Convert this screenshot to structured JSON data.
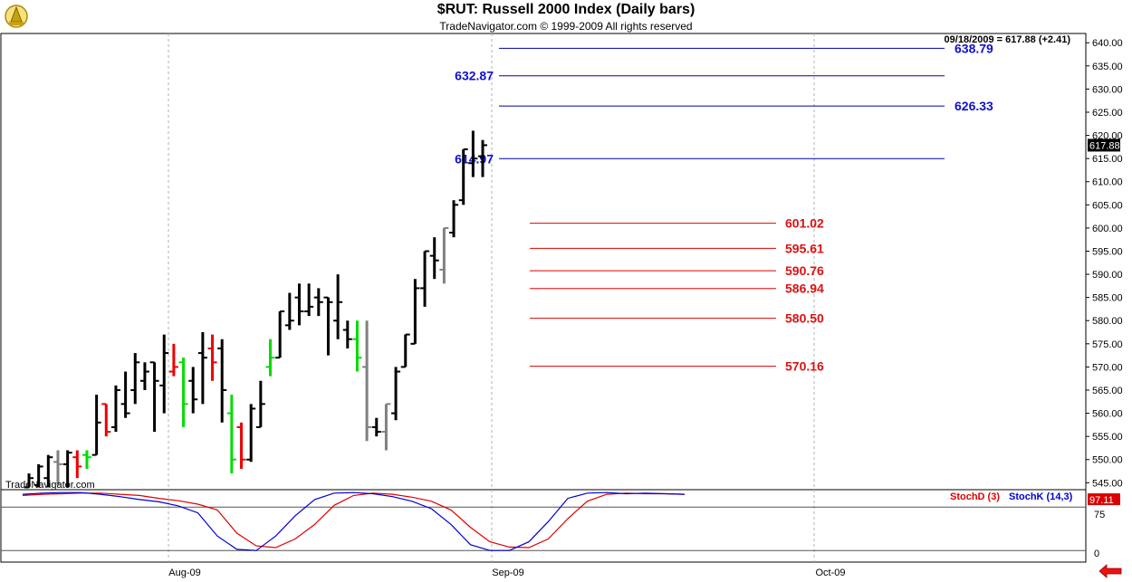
{
  "header": {
    "title": "$RUT:  Russell 2000 Index  (Daily bars)",
    "subtitle": "TradeNavigator.com © 1999-2009 All rights reserved",
    "last_quote": "09/18/2009 = 617.88 (+2.41)",
    "watermark": "TradeNavigator.com"
  },
  "colors": {
    "up_bar": "#000000",
    "down_bar": "#000000",
    "green_bar": "#00dd00",
    "red_bar": "#ee0000",
    "gray_bar": "#808080",
    "resistance": "#0000aa",
    "support": "#dd0000",
    "stochD": "#dd0000",
    "stochK": "#0000cc"
  },
  "chart_data": [
    {
      "type": "ohlc",
      "title": "$RUT:  Russell 2000 Index  (Daily bars)",
      "last_value_label": "617.88",
      "y_ticks": [
        545.0,
        550.0,
        555.0,
        560.0,
        565.0,
        570.0,
        575.0,
        580.0,
        585.0,
        590.0,
        595.0,
        600.0,
        605.0,
        610.0,
        615.0,
        620.0,
        625.0,
        630.0,
        635.0,
        640.0
      ],
      "ylim": [
        543.5,
        642
      ],
      "x_ticks": [
        "Aug-09",
        "Sep-09",
        "Oct-09"
      ],
      "bars": [
        {
          "o": 544.0,
          "h": 547.0,
          "l": 544.0,
          "c": 546.0,
          "color": "black"
        },
        {
          "o": 544.5,
          "h": 549.0,
          "l": 544.0,
          "c": 548.5,
          "color": "black"
        },
        {
          "o": 546.0,
          "h": 551.0,
          "l": 544.0,
          "c": 550.5,
          "color": "black"
        },
        {
          "o": 549.5,
          "h": 552.0,
          "l": 544.5,
          "c": 549.0,
          "color": "gray"
        },
        {
          "o": 549.0,
          "h": 552.0,
          "l": 544.0,
          "c": 551.5,
          "color": "black"
        },
        {
          "o": 550.5,
          "h": 552.0,
          "l": 546.0,
          "c": 548.5,
          "color": "red"
        },
        {
          "o": 551.0,
          "h": 552.0,
          "l": 548.0,
          "c": 550.5,
          "color": "green"
        },
        {
          "o": 551.0,
          "h": 564.0,
          "l": 551.0,
          "c": 558.0,
          "color": "black"
        },
        {
          "o": 562.0,
          "h": 562.0,
          "l": 555.0,
          "c": 556.0,
          "color": "red"
        },
        {
          "o": 557.0,
          "h": 566.0,
          "l": 556.0,
          "c": 565.0,
          "color": "black"
        },
        {
          "o": 562.0,
          "h": 569.0,
          "l": 559.0,
          "c": 560.0,
          "color": "black"
        },
        {
          "o": 565.0,
          "h": 573.0,
          "l": 562.0,
          "c": 571.0,
          "color": "black"
        },
        {
          "o": 567.0,
          "h": 571.0,
          "l": 565.0,
          "c": 569.0,
          "color": "black"
        },
        {
          "o": 571.0,
          "h": 571.0,
          "l": 556.0,
          "c": 567.0,
          "color": "black"
        },
        {
          "o": 566.0,
          "h": 577.0,
          "l": 560.0,
          "c": 573.0,
          "color": "black"
        },
        {
          "o": 569.0,
          "h": 575.0,
          "l": 568.0,
          "c": 570.0,
          "color": "red"
        },
        {
          "o": 571.0,
          "h": 572.0,
          "l": 557.0,
          "c": 562.0,
          "color": "green"
        },
        {
          "o": 567.0,
          "h": 570.0,
          "l": 560.0,
          "c": 563.0,
          "color": "black"
        },
        {
          "o": 573.0,
          "h": 577.5,
          "l": 562.0,
          "c": 572.0,
          "color": "black"
        },
        {
          "o": 574.0,
          "h": 577.0,
          "l": 567.0,
          "c": 571.0,
          "color": "red"
        },
        {
          "o": 574.0,
          "h": 576.0,
          "l": 558.0,
          "c": 565.0,
          "color": "black"
        },
        {
          "o": 560.0,
          "h": 564.0,
          "l": 547.0,
          "c": 550.0,
          "color": "green"
        },
        {
          "o": 557.0,
          "h": 558.0,
          "l": 548.0,
          "c": 550.0,
          "color": "red"
        },
        {
          "o": 550.0,
          "h": 562.0,
          "l": 549.5,
          "c": 561.0,
          "color": "black"
        },
        {
          "o": 557.0,
          "h": 567.0,
          "l": 557.0,
          "c": 562.0,
          "color": "black"
        },
        {
          "o": 570.0,
          "h": 576.0,
          "l": 568.0,
          "c": 572.0,
          "color": "green"
        },
        {
          "o": 572.0,
          "h": 582.0,
          "l": 572.0,
          "c": 582.0,
          "color": "black"
        },
        {
          "o": 579.0,
          "h": 586.0,
          "l": 578.0,
          "c": 580.0,
          "color": "black"
        },
        {
          "o": 585.0,
          "h": 588.0,
          "l": 579.0,
          "c": 582.0,
          "color": "black"
        },
        {
          "o": 582.0,
          "h": 588.0,
          "l": 581.0,
          "c": 583.0,
          "color": "black"
        },
        {
          "o": 585.0,
          "h": 587.0,
          "l": 581.0,
          "c": 584.0,
          "color": "black"
        },
        {
          "o": 585.0,
          "h": 585.0,
          "l": 572.5,
          "c": 584.0,
          "color": "black"
        },
        {
          "o": 580.0,
          "h": 590.0,
          "l": 576.0,
          "c": 584.0,
          "color": "black"
        },
        {
          "o": 578.0,
          "h": 580.0,
          "l": 574.0,
          "c": 576.0,
          "color": "black"
        },
        {
          "o": 576.0,
          "h": 580.0,
          "l": 569.0,
          "c": 572.0,
          "color": "green"
        },
        {
          "o": 570.0,
          "h": 580.0,
          "l": 554.0,
          "c": 557.0,
          "color": "gray"
        },
        {
          "o": 557.0,
          "h": 559.0,
          "l": 555.0,
          "c": 556.0,
          "color": "black"
        },
        {
          "o": 556.0,
          "h": 562.0,
          "l": 552.0,
          "c": 562.0,
          "color": "gray"
        },
        {
          "o": 560.0,
          "h": 570.0,
          "l": 558.5,
          "c": 569.0,
          "color": "black"
        },
        {
          "o": 570.0,
          "h": 577.0,
          "l": 570.0,
          "c": 577.0,
          "color": "black"
        },
        {
          "o": 575.0,
          "h": 589.0,
          "l": 575.0,
          "c": 587.0,
          "color": "black"
        },
        {
          "o": 587.0,
          "h": 595.0,
          "l": 583.0,
          "c": 595.0,
          "color": "black"
        },
        {
          "o": 594.0,
          "h": 598.0,
          "l": 589.0,
          "c": 593.0,
          "color": "black"
        },
        {
          "o": 591.0,
          "h": 600.0,
          "l": 588.0,
          "c": 600.0,
          "color": "gray"
        },
        {
          "o": 599.0,
          "h": 606.0,
          "l": 598.0,
          "c": 605.0,
          "color": "black"
        },
        {
          "o": 606.0,
          "h": 617.0,
          "l": 605.0,
          "c": 617.0,
          "color": "black"
        },
        {
          "o": 614.0,
          "h": 621.0,
          "l": 611.0,
          "c": 615.0,
          "color": "black"
        },
        {
          "o": 615.5,
          "h": 619.0,
          "l": 611.0,
          "c": 617.88,
          "color": "black"
        }
      ],
      "levels": [
        {
          "label": "638.79",
          "value": 638.79,
          "kind": "resistance",
          "label_side": "right"
        },
        {
          "label": "632.87",
          "value": 632.87,
          "kind": "resistance",
          "label_side": "left"
        },
        {
          "label": "626.33",
          "value": 626.33,
          "kind": "resistance",
          "label_side": "right"
        },
        {
          "label": "614.97",
          "value": 614.97,
          "kind": "resistance",
          "label_side": "left"
        },
        {
          "label": "601.02",
          "value": 601.02,
          "kind": "support",
          "label_side": "right"
        },
        {
          "label": "595.61",
          "value": 595.61,
          "kind": "support",
          "label_side": "right"
        },
        {
          "label": "590.76",
          "value": 590.76,
          "kind": "support",
          "label_side": "right"
        },
        {
          "label": "586.94",
          "value": 586.94,
          "kind": "support",
          "label_side": "right"
        },
        {
          "label": "580.50",
          "value": 580.5,
          "kind": "support",
          "label_side": "right"
        },
        {
          "label": "570.16",
          "value": 570.16,
          "kind": "support",
          "label_side": "right"
        }
      ]
    },
    {
      "type": "line",
      "legend": [
        "StochD (3)",
        "StochK (14,3)"
      ],
      "last_value_label": "97.11",
      "y_ticks": [
        "75",
        "0"
      ],
      "ylim": [
        -20,
        105
      ],
      "x_ticks": [
        "Aug-09",
        "Sep-09",
        "Oct-09"
      ],
      "series": [
        {
          "name": "StochD (3)",
          "color": "red",
          "values": [
            95,
            97,
            98,
            99,
            99,
            97,
            95,
            90,
            86,
            80,
            70,
            30,
            8,
            5,
            20,
            45,
            78,
            95,
            99,
            97,
            92,
            85,
            70,
            40,
            15,
            6,
            5,
            20,
            55,
            85,
            97,
            99,
            98,
            98,
            97
          ]
        },
        {
          "name": "StochK (14,3)",
          "color": "blue",
          "values": [
            97,
            99,
            100,
            100,
            97,
            93,
            88,
            84,
            77,
            65,
            25,
            2,
            0,
            25,
            60,
            88,
            99,
            100,
            98,
            93,
            85,
            72,
            45,
            10,
            0,
            0,
            15,
            50,
            90,
            99,
            100,
            98,
            99,
            98,
            97
          ]
        }
      ]
    }
  ]
}
